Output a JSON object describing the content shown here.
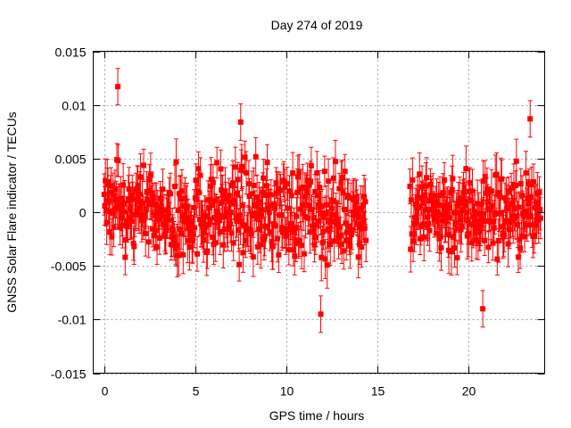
{
  "chart_data": {
    "type": "scatter",
    "title": "Day 274 of 2019",
    "xlabel": "GPS time / hours",
    "ylabel": "GNSS Solar Flare indicator / TECUs",
    "xlim": [
      -0.6,
      24.2
    ],
    "ylim": [
      -0.015,
      0.015
    ],
    "x_ticks": [
      0,
      5,
      10,
      15,
      20
    ],
    "y_ticks": [
      -0.015,
      -0.01,
      -0.005,
      0,
      0.005,
      0.01,
      0.015
    ],
    "x_tick_labels": [
      "0",
      "5",
      "10",
      "15",
      "20"
    ],
    "y_tick_labels": [
      "-0.015",
      "-0.01",
      "-0.005",
      "0",
      "0.005",
      "0.01",
      "0.015"
    ],
    "grid": true,
    "marker": "square",
    "color": "#ff0000",
    "error_bars": true,
    "typical_error": 0.0017,
    "segments": [
      {
        "x_start": 0.0,
        "x_end": 14.4,
        "spread": 0.0045
      },
      {
        "x_start": 16.8,
        "x_end": 24.0,
        "spread": 0.0045
      }
    ],
    "highlights": [
      {
        "x": 0.75,
        "y": 0.0117
      },
      {
        "x": 20.8,
        "y": -0.009
      },
      {
        "x": 23.4,
        "y": 0.0087
      },
      {
        "x": 7.5,
        "y": 0.0084
      },
      {
        "x": 11.9,
        "y": -0.0095
      }
    ]
  }
}
